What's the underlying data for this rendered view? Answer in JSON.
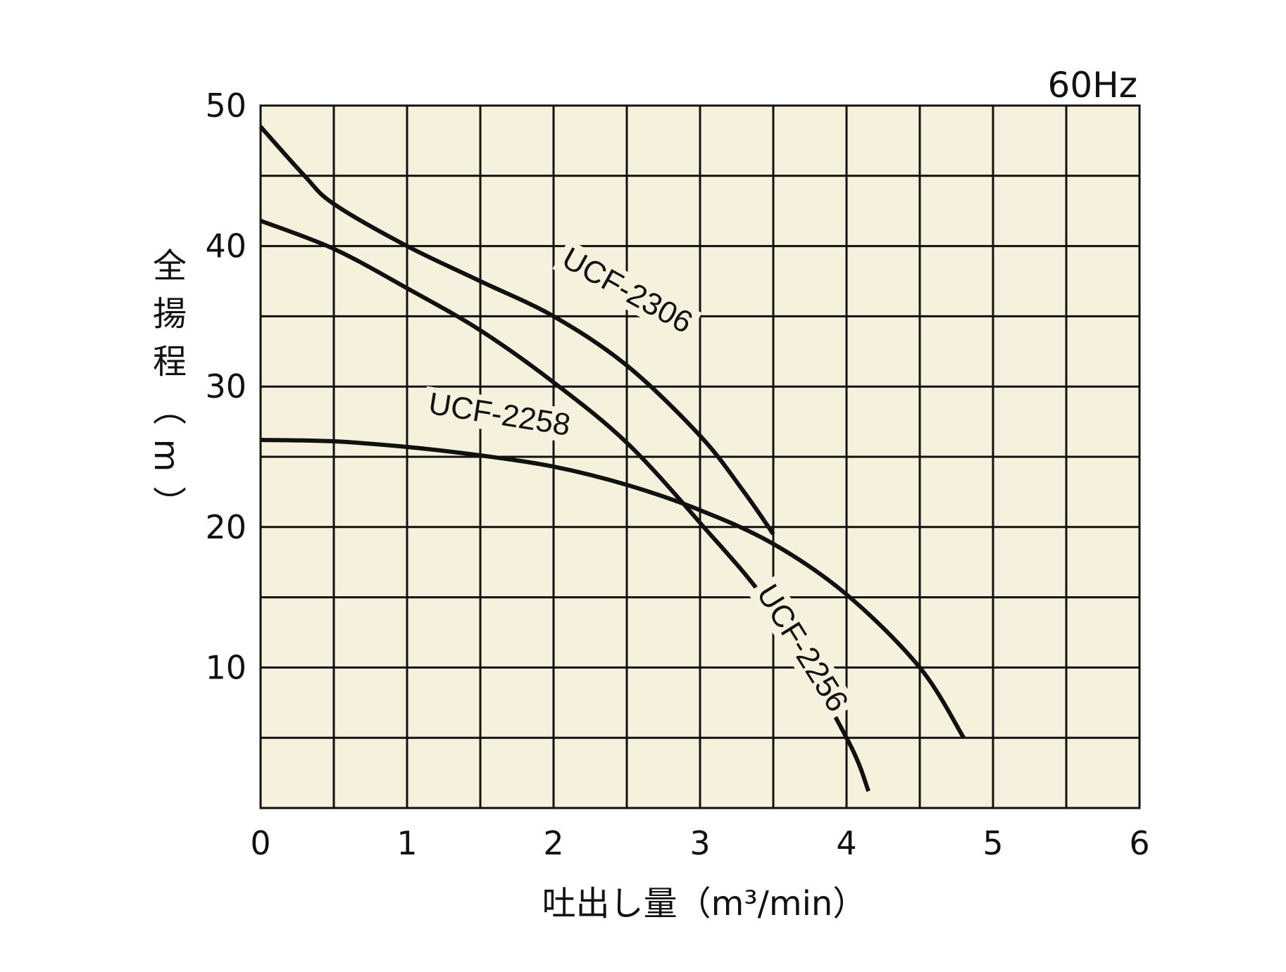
{
  "chart_data": {
    "type": "line",
    "frequency_label": "60Hz",
    "xlabel": "吐出し量（m³/min）",
    "ylabel": "全揚程（m）",
    "xlim": [
      0,
      6
    ],
    "ylim": [
      0,
      50
    ],
    "x_ticks": [
      "0",
      "1",
      "2",
      "3",
      "4",
      "5",
      "6"
    ],
    "y_ticks": [
      "10",
      "20",
      "30",
      "40",
      "50"
    ],
    "grid": true,
    "background": "#f5f1dc",
    "line_color": "#111111",
    "series": [
      {
        "name": "UCF-2306",
        "points": [
          [
            0,
            48.5
          ],
          [
            0.3,
            45
          ],
          [
            0.5,
            43
          ],
          [
            1,
            40
          ],
          [
            1.5,
            37.5
          ],
          [
            2,
            35
          ],
          [
            2.5,
            31.5
          ],
          [
            3,
            26.5
          ],
          [
            3.3,
            22.5
          ],
          [
            3.5,
            19.5
          ]
        ]
      },
      {
        "name": "UCF-2256",
        "points": [
          [
            0,
            41.8
          ],
          [
            0.5,
            39.8
          ],
          [
            1,
            37
          ],
          [
            1.5,
            34
          ],
          [
            2,
            30.3
          ],
          [
            2.5,
            26
          ],
          [
            3,
            20.3
          ],
          [
            3.5,
            14
          ],
          [
            4,
            5
          ],
          [
            4.15,
            1.2
          ]
        ]
      },
      {
        "name": "UCF-2258",
        "points": [
          [
            0,
            26.2
          ],
          [
            0.5,
            26.1
          ],
          [
            1,
            25.7
          ],
          [
            1.5,
            25.1
          ],
          [
            2,
            24.3
          ],
          [
            2.5,
            23
          ],
          [
            3,
            21.2
          ],
          [
            3.5,
            18.8
          ],
          [
            4,
            15.2
          ],
          [
            4.5,
            10
          ],
          [
            4.8,
            5
          ]
        ]
      }
    ]
  }
}
